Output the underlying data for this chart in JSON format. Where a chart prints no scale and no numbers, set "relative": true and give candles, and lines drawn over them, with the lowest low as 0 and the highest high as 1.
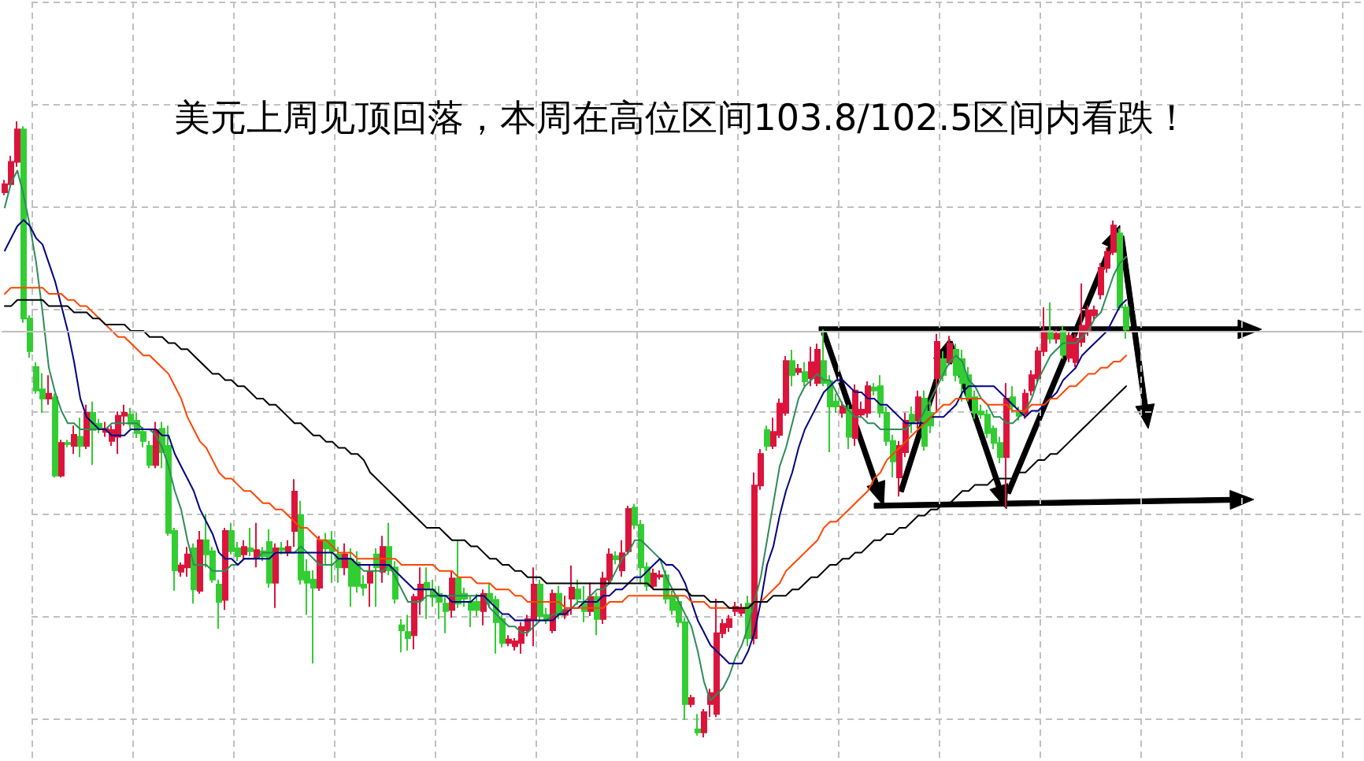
{
  "chart_data": {
    "type": "candlestick",
    "title": "美元上周见顶回落，本周在高位区间103.8/102.5区间内看跌！",
    "relative": true,
    "grid": true,
    "marker": "none",
    "categories": [
      null,
      null,
      null,
      null,
      null,
      null,
      null,
      null,
      null,
      null,
      null,
      null,
      null,
      null,
      null,
      null,
      null,
      null,
      null,
      null,
      null,
      null,
      null,
      null,
      null,
      null,
      null,
      null,
      null,
      null,
      null,
      null,
      null,
      null,
      null,
      null,
      null,
      null,
      null,
      null,
      null,
      null,
      null,
      null,
      null,
      null,
      null,
      null,
      null,
      null,
      null,
      null,
      null,
      null,
      null,
      null,
      null,
      null,
      null,
      null,
      null,
      null,
      null,
      null,
      null,
      null,
      null,
      null,
      null,
      null,
      null,
      null,
      null,
      null,
      null,
      null,
      null,
      null,
      null,
      null,
      null,
      null,
      null,
      null,
      null,
      null,
      null,
      null,
      null,
      null,
      null,
      null,
      null,
      null,
      null,
      null,
      null,
      null,
      null,
      null,
      null,
      null,
      null,
      null,
      null,
      null,
      null,
      null,
      null,
      null,
      null,
      null,
      null,
      null,
      null,
      null,
      null,
      null,
      null,
      null,
      null,
      null,
      null,
      null,
      null,
      null,
      null,
      null,
      null,
      null,
      null,
      null,
      null,
      null,
      null,
      null,
      null,
      null,
      null,
      null,
      null,
      null,
      null,
      null,
      null,
      null,
      null,
      null,
      null,
      null,
      null,
      null,
      null,
      null,
      null,
      null,
      null,
      null,
      null,
      null,
      null,
      null,
      null,
      null,
      null,
      null,
      null,
      null,
      null,
      null,
      null,
      null,
      null,
      null,
      null,
      null,
      null,
      null,
      null,
      null,
      null,
      null,
      null,
      null,
      null,
      null,
      null,
      null,
      null,
      null,
      null,
      null,
      null,
      null,
      null,
      null,
      null,
      null,
      null,
      null,
      null,
      null,
      null,
      null,
      null,
      null,
      null,
      null,
      null,
      null,
      null,
      null,
      null,
      null,
      null,
      null
    ],
    "ohlc": [
      [
        0.885,
        0.905,
        0.88,
        0.898
      ],
      [
        0.898,
        0.944,
        0.893,
        0.934
      ],
      [
        0.934,
        1.0,
        0.926,
        0.987
      ],
      [
        0.987,
        0.992,
        0.673,
        0.68
      ],
      [
        0.68,
        0.685,
        0.616,
        0.627
      ],
      [
        0.601,
        0.609,
        0.558,
        0.563
      ],
      [
        0.565,
        0.591,
        0.527,
        0.55
      ],
      [
        0.55,
        0.588,
        0.54,
        0.558
      ],
      [
        0.552,
        0.558,
        0.422,
        0.425
      ],
      [
        0.425,
        0.483,
        0.422,
        0.478
      ],
      [
        0.478,
        0.483,
        0.471,
        0.476
      ],
      [
        0.473,
        0.506,
        0.46,
        0.491
      ],
      [
        0.488,
        0.519,
        0.455,
        0.473
      ],
      [
        0.473,
        0.54,
        0.468,
        0.527
      ],
      [
        0.527,
        0.545,
        0.442,
        0.499
      ],
      [
        0.509,
        0.517,
        0.494,
        0.501
      ],
      [
        0.496,
        0.512,
        0.488,
        0.501
      ],
      [
        0.481,
        0.506,
        0.473,
        0.499
      ],
      [
        0.488,
        0.529,
        0.46,
        0.522
      ],
      [
        0.522,
        0.54,
        0.506,
        0.527
      ],
      [
        0.524,
        0.535,
        0.501,
        0.509
      ],
      [
        0.514,
        0.527,
        0.486,
        0.494
      ],
      [
        0.496,
        0.504,
        0.471,
        0.481
      ],
      [
        0.473,
        0.481,
        0.437,
        0.442
      ],
      [
        0.442,
        0.512,
        0.437,
        0.499
      ],
      [
        0.501,
        0.512,
        0.437,
        0.463
      ],
      [
        0.473,
        0.506,
        0.327,
        0.332
      ],
      [
        0.335,
        0.34,
        0.238,
        0.271
      ],
      [
        0.269,
        0.284,
        0.261,
        0.279
      ],
      [
        0.276,
        0.309,
        0.261,
        0.297
      ],
      [
        0.307,
        0.315,
        0.217,
        0.24
      ],
      [
        0.238,
        0.335,
        0.233,
        0.32
      ],
      [
        0.32,
        0.363,
        0.276,
        0.297
      ],
      [
        0.302,
        0.309,
        0.251,
        0.256
      ],
      [
        0.248,
        0.256,
        0.176,
        0.22
      ],
      [
        0.223,
        0.34,
        0.207,
        0.335
      ],
      [
        0.335,
        0.348,
        0.297,
        0.302
      ],
      [
        0.307,
        0.317,
        0.286,
        0.294
      ],
      [
        0.297,
        0.32,
        0.289,
        0.309
      ],
      [
        0.307,
        0.34,
        0.294,
        0.302
      ],
      [
        0.292,
        0.348,
        0.276,
        0.304
      ],
      [
        0.302,
        0.309,
        0.286,
        0.294
      ],
      [
        0.317,
        0.338,
        0.243,
        0.251
      ],
      [
        0.251,
        0.315,
        0.21,
        0.307
      ],
      [
        0.307,
        0.317,
        0.297,
        0.304
      ],
      [
        0.302,
        0.32,
        0.294,
        0.309
      ],
      [
        0.335,
        0.419,
        0.309,
        0.399
      ],
      [
        0.361,
        0.384,
        0.248,
        0.256
      ],
      [
        0.269,
        0.289,
        0.199,
        0.251
      ],
      [
        0.256,
        0.271,
        0.12,
        0.243
      ],
      [
        0.243,
        0.327,
        0.238,
        0.32
      ],
      [
        0.32,
        0.332,
        0.281,
        0.307
      ],
      [
        0.32,
        0.335,
        0.251,
        0.302
      ],
      [
        0.297,
        0.309,
        0.251,
        0.276
      ],
      [
        0.276,
        0.315,
        0.263,
        0.297
      ],
      [
        0.289,
        0.307,
        0.212,
        0.246
      ],
      [
        0.284,
        0.302,
        0.235,
        0.246
      ],
      [
        0.248,
        0.263,
        0.23,
        0.243
      ],
      [
        0.251,
        0.281,
        0.212,
        0.269
      ],
      [
        0.297,
        0.307,
        0.212,
        0.276
      ],
      [
        0.269,
        0.327,
        0.251,
        0.309
      ],
      [
        0.309,
        0.348,
        0.263,
        0.271
      ],
      [
        0.276,
        0.286,
        0.217,
        0.225
      ],
      [
        0.182,
        0.192,
        0.138,
        0.174
      ],
      [
        0.171,
        0.199,
        0.141,
        0.161
      ],
      [
        0.166,
        0.233,
        0.143,
        0.228
      ],
      [
        0.223,
        0.276,
        0.199,
        0.248
      ],
      [
        0.251,
        0.276,
        0.192,
        0.24
      ],
      [
        0.24,
        0.256,
        0.212,
        0.228
      ],
      [
        0.233,
        0.246,
        0.192,
        0.22
      ],
      [
        0.217,
        0.23,
        0.169,
        0.205
      ],
      [
        0.207,
        0.271,
        0.194,
        0.258
      ],
      [
        0.258,
        0.32,
        0.21,
        0.217
      ],
      [
        0.233,
        0.243,
        0.212,
        0.225
      ],
      [
        0.22,
        0.23,
        0.179,
        0.207
      ],
      [
        0.22,
        0.233,
        0.197,
        0.207
      ],
      [
        0.205,
        0.24,
        0.182,
        0.233
      ],
      [
        0.233,
        0.251,
        0.21,
        0.22
      ],
      [
        0.223,
        0.23,
        0.136,
        0.187
      ],
      [
        0.192,
        0.199,
        0.146,
        0.153
      ],
      [
        0.153,
        0.166,
        0.148,
        0.159
      ],
      [
        0.148,
        0.161,
        0.141,
        0.156
      ],
      [
        0.153,
        0.187,
        0.136,
        0.179
      ],
      [
        0.174,
        0.199,
        0.164,
        0.192
      ],
      [
        0.192,
        0.276,
        0.148,
        0.248
      ],
      [
        0.248,
        0.256,
        0.189,
        0.197
      ],
      [
        0.199,
        0.21,
        0.184,
        0.192
      ],
      [
        0.174,
        0.24,
        0.169,
        0.233
      ],
      [
        0.233,
        0.246,
        0.192,
        0.199
      ],
      [
        0.199,
        0.23,
        0.192,
        0.207
      ],
      [
        0.225,
        0.279,
        0.199,
        0.243
      ],
      [
        0.24,
        0.256,
        0.215,
        0.225
      ],
      [
        0.217,
        0.246,
        0.187,
        0.205
      ],
      [
        0.205,
        0.251,
        0.197,
        0.228
      ],
      [
        0.228,
        0.235,
        0.166,
        0.192
      ],
      [
        0.192,
        0.269,
        0.184,
        0.258
      ],
      [
        0.256,
        0.307,
        0.248,
        0.297
      ],
      [
        0.294,
        0.302,
        0.281,
        0.289
      ],
      [
        0.271,
        0.32,
        0.261,
        0.299
      ],
      [
        0.302,
        0.376,
        0.297,
        0.371
      ],
      [
        0.373,
        0.379,
        0.338,
        0.345
      ],
      [
        0.345,
        0.353,
        0.251,
        0.276
      ],
      [
        0.276,
        0.284,
        0.238,
        0.246
      ],
      [
        0.246,
        0.274,
        0.24,
        0.266
      ],
      [
        0.261,
        0.271,
        0.256,
        0.263
      ],
      [
        0.263,
        0.271,
        0.217,
        0.225
      ],
      [
        0.23,
        0.238,
        0.199,
        0.207
      ],
      [
        0.22,
        0.23,
        0.179,
        0.187
      ],
      [
        0.187,
        0.194,
        0.028,
        0.054
      ],
      [
        0.054,
        0.069,
        0.049,
        0.064
      ],
      [
        0.013,
        0.038,
        0.003,
        0.008
      ],
      [
        0.008,
        0.046,
        0,
        0.041
      ],
      [
        0.054,
        0.079,
        0.033,
        0.072
      ],
      [
        0.038,
        0.225,
        0.033,
        0.169
      ],
      [
        0.169,
        0.192,
        0.161,
        0.184
      ],
      [
        0.179,
        0.199,
        0.171,
        0.192
      ],
      [
        0.205,
        0.22,
        0.197,
        0.212
      ],
      [
        0.202,
        0.217,
        0.197,
        0.21
      ],
      [
        0.217,
        0.23,
        0.148,
        0.161
      ],
      [
        0.161,
        0.43,
        0.151,
        0.409
      ],
      [
        0.409,
        0.468,
        0.402,
        0.46
      ],
      [
        0.499,
        0.506,
        0.465,
        0.473
      ],
      [
        0.473,
        0.519,
        0.468,
        0.496
      ],
      [
        0.491,
        0.55,
        0.486,
        0.542
      ],
      [
        0.527,
        0.619,
        0.522,
        0.611
      ],
      [
        0.611,
        0.629,
        0.57,
        0.588
      ],
      [
        0.593,
        0.606,
        0.588,
        0.598
      ],
      [
        0.593,
        0.609,
        0.57,
        0.578
      ],
      [
        0.583,
        0.634,
        0.57,
        0.609
      ],
      [
        0.575,
        0.639,
        0.57,
        0.629
      ],
      [
        0.611,
        0.662,
        0.57,
        0.575
      ],
      [
        0.578,
        0.588,
        0.463,
        0.537
      ],
      [
        0.545,
        0.558,
        0.527,
        0.537
      ],
      [
        0.527,
        0.545,
        0.519,
        0.537
      ],
      [
        0.532,
        0.54,
        0.468,
        0.488
      ],
      [
        0.486,
        0.573,
        0.473,
        0.563
      ],
      [
        0.524,
        0.545,
        0.519,
        0.532
      ],
      [
        0.527,
        0.578,
        0.519,
        0.57
      ],
      [
        0.568,
        0.575,
        0.555,
        0.563
      ],
      [
        0.57,
        0.588,
        0.519,
        0.527
      ],
      [
        0.527,
        0.537,
        0.473,
        0.481
      ],
      [
        0.481,
        0.491,
        0.422,
        0.448
      ],
      [
        0.422,
        0.481,
        0.391,
        0.473
      ],
      [
        0.463,
        0.527,
        0.455,
        0.514
      ],
      [
        0.524,
        0.537,
        0.494,
        0.512
      ],
      [
        0.514,
        0.563,
        0.501,
        0.552
      ],
      [
        0.55,
        0.563,
        0.465,
        0.473
      ],
      [
        0.527,
        0.545,
        0.494,
        0.506
      ],
      [
        0.583,
        0.655,
        0.527,
        0.642
      ],
      [
        0.614,
        0.627,
        0.578,
        0.588
      ],
      [
        0.609,
        0.652,
        0.604,
        0.639
      ],
      [
        0.629,
        0.639,
        0.578,
        0.588
      ],
      [
        0.614,
        0.629,
        0.545,
        0.575
      ],
      [
        0.588,
        0.601,
        0.545,
        0.552
      ],
      [
        0.552,
        0.563,
        0.517,
        0.527
      ],
      [
        0.529,
        0.54,
        0.517,
        0.524
      ],
      [
        0.524,
        0.532,
        0.486,
        0.494
      ],
      [
        0.501,
        0.506,
        0.468,
        0.478
      ],
      [
        0.478,
        0.488,
        0.445,
        0.455
      ],
      [
        0.455,
        0.575,
        0.373,
        0.55
      ],
      [
        0.552,
        0.57,
        0.527,
        0.537
      ],
      [
        0.527,
        0.537,
        0.514,
        0.522
      ],
      [
        0.524,
        0.565,
        0.517,
        0.558
      ],
      [
        0.563,
        0.596,
        0.555,
        0.588
      ],
      [
        0.583,
        0.634,
        0.575,
        0.627
      ],
      [
        0.627,
        0.698,
        0.619,
        0.66
      ],
      [
        0.66,
        0.706,
        0.639,
        0.647
      ],
      [
        0.647,
        0.662,
        0.639,
        0.655
      ],
      [
        0.66,
        0.668,
        0.614,
        0.621
      ],
      [
        0.616,
        0.66,
        0.609,
        0.652
      ],
      [
        0.609,
        0.655,
        0.601,
        0.647
      ],
      [
        0.642,
        0.737,
        0.634,
        0.668
      ],
      [
        0.66,
        0.701,
        0.652,
        0.693
      ],
      [
        0.685,
        0.701,
        0.678,
        0.693
      ],
      [
        0.719,
        0.77,
        0.711,
        0.762
      ],
      [
        0.762,
        0.795,
        0.754,
        0.788
      ],
      [
        0.788,
        0.839,
        0.783,
        0.831
      ],
      [
        0.818,
        0.826,
        0.693,
        0.698
      ],
      [
        0.698,
        0.703,
        0.647,
        0.662
      ],
      null,
      null,
      null,
      null,
      null,
      null,
      null,
      null,
      null,
      null,
      null,
      null,
      null,
      null,
      null,
      null,
      null,
      null,
      null,
      null,
      null,
      null,
      null,
      null,
      null,
      null,
      null,
      null,
      null,
      null,
      null,
      null,
      null,
      null,
      null,
      null,
      null
    ],
    "colors": [
      "#dc143c",
      "#dc143c",
      "#dc143c",
      "#32cd32",
      "#32cd32",
      "#32cd32",
      "#32cd32",
      "#dc143c",
      "#32cd32",
      "#dc143c",
      "#32cd32",
      "#dc143c",
      "#32cd32",
      "#dc143c",
      "#32cd32",
      "#32cd32",
      "#dc143c",
      "#dc143c",
      "#dc143c",
      "#dc143c",
      "#32cd32",
      "#32cd32",
      "#32cd32",
      "#32cd32",
      "#dc143c",
      "#32cd32",
      "#32cd32",
      "#32cd32",
      "#dc143c",
      "#dc143c",
      "#32cd32",
      "#dc143c",
      "#32cd32",
      "#32cd32",
      "#32cd32",
      "#dc143c",
      "#32cd32",
      "#32cd32",
      "#dc143c",
      "#32cd32",
      "#dc143c",
      "#32cd32",
      "#32cd32",
      "#dc143c",
      "#32cd32",
      "#dc143c",
      "#dc143c",
      "#32cd32",
      "#32cd32",
      "#32cd32",
      "#dc143c",
      "#32cd32",
      "#32cd32",
      "#32cd32",
      "#dc143c",
      "#32cd32",
      "#32cd32",
      "#32cd32",
      "#dc143c",
      "#32cd32",
      "#dc143c",
      "#32cd32",
      "#32cd32",
      "#32cd32",
      "#32cd32",
      "#dc143c",
      "#dc143c",
      "#32cd32",
      "#32cd32",
      "#32cd32",
      "#32cd32",
      "#dc143c",
      "#32cd32",
      "#32cd32",
      "#32cd32",
      "#32cd32",
      "#dc143c",
      "#32cd32",
      "#32cd32",
      "#32cd32",
      "#dc143c",
      "#dc143c",
      "#dc143c",
      "#dc143c",
      "#dc143c",
      "#32cd32",
      "#32cd32",
      "#dc143c",
      "#32cd32",
      "#dc143c",
      "#dc143c",
      "#32cd32",
      "#32cd32",
      "#dc143c",
      "#32cd32",
      "#dc143c",
      "#dc143c",
      "#32cd32",
      "#dc143c",
      "#dc143c",
      "#32cd32",
      "#32cd32",
      "#32cd32",
      "#dc143c",
      "#dc143c",
      "#32cd32",
      "#32cd32",
      "#32cd32",
      "#32cd32",
      "#dc143c",
      "#32cd32",
      "#dc143c",
      "#dc143c",
      "#dc143c",
      "#dc143c",
      "#dc143c",
      "#dc143c",
      "#dc143c",
      "#32cd32",
      "#dc143c",
      "#dc143c",
      "#32cd32",
      "#dc143c",
      "#dc143c",
      "#dc143c",
      "#32cd32",
      "#dc143c",
      "#32cd32",
      "#dc143c",
      "#dc143c",
      "#32cd32",
      "#32cd32",
      "#32cd32",
      "#dc143c",
      "#32cd32",
      "#dc143c",
      "#dc143c",
      "#dc143c",
      "#32cd32",
      "#32cd32",
      "#32cd32",
      "#32cd32",
      "#dc143c",
      "#dc143c",
      "#32cd32",
      "#dc143c",
      "#32cd32",
      "#32cd32",
      "#dc143c",
      "#32cd32",
      "#dc143c",
      "#32cd32",
      "#32cd32",
      "#32cd32",
      "#32cd32",
      "#32cd32",
      "#32cd32",
      "#32cd32",
      "#32cd32",
      "#dc143c",
      "#32cd32",
      "#32cd32",
      "#dc143c",
      "#dc143c",
      "#dc143c",
      "#dc143c",
      "#32cd32",
      "#dc143c",
      "#32cd32",
      "#dc143c",
      "#dc143c",
      "#dc143c",
      "#dc143c",
      "#dc143c",
      "#dc143c",
      "#dc143c",
      "#dc143c",
      "#32cd32",
      "#32cd32",
      null,
      null,
      null,
      null,
      null,
      null,
      null,
      null,
      null,
      null,
      null,
      null,
      null,
      null,
      null,
      null,
      null,
      null,
      null,
      null,
      null,
      null,
      null,
      null,
      null,
      null,
      null,
      null,
      null,
      null,
      null,
      null,
      null,
      null,
      null,
      null,
      null
    ],
    "series": [
      {
        "type": "line",
        "color": "#2e8b57",
        "values": [
          0.86,
          0.9,
          0.92,
          0.88,
          0.83,
          0.77,
          0.69,
          0.6,
          0.56,
          0.53,
          0.51,
          0.51,
          0.5,
          0.5,
          0.5,
          0.5,
          0.5,
          0.51,
          0.51,
          0.51,
          0.51,
          0.51,
          0.5,
          0.5,
          0.49,
          0.47,
          0.44,
          0.4,
          0.37,
          0.32,
          0.28,
          0.28,
          0.28,
          0.27,
          0.27,
          0.27,
          0.28,
          0.28,
          0.29,
          0.29,
          0.29,
          0.3,
          0.3,
          0.3,
          0.3,
          0.3,
          0.3,
          0.31,
          0.3,
          0.29,
          0.28,
          0.28,
          0.28,
          0.29,
          0.29,
          0.29,
          0.28,
          0.27,
          0.27,
          0.27,
          0.27,
          0.28,
          0.26,
          0.24,
          0.22,
          0.22,
          0.22,
          0.23,
          0.23,
          0.23,
          0.23,
          0.23,
          0.23,
          0.23,
          0.23,
          0.23,
          0.23,
          0.21,
          0.2,
          0.19,
          0.18,
          0.18,
          0.17,
          0.17,
          0.18,
          0.19,
          0.19,
          0.2,
          0.2,
          0.21,
          0.21,
          0.22,
          0.22,
          0.23,
          0.24,
          0.24,
          0.25,
          0.27,
          0.29,
          0.3,
          0.32,
          0.32,
          0.31,
          0.3,
          0.29,
          0.26,
          0.24,
          0.22,
          0.2,
          0.18,
          0.14,
          0.09,
          0.06,
          0.07,
          0.08,
          0.1,
          0.13,
          0.15,
          0.18,
          0.22,
          0.26,
          0.32,
          0.38,
          0.44,
          0.47,
          0.51,
          0.55,
          0.57,
          0.58,
          0.59,
          0.58,
          0.58,
          0.56,
          0.54,
          0.53,
          0.52,
          0.52,
          0.51,
          0.51,
          0.5,
          0.5,
          0.5,
          0.5,
          0.5,
          0.51,
          0.51,
          0.53,
          0.55,
          0.57,
          0.59,
          0.61,
          0.62,
          0.61,
          0.58,
          0.57,
          0.55,
          0.54,
          0.52,
          0.52,
          0.51,
          0.51,
          0.52,
          0.53,
          0.55,
          0.58,
          0.6,
          0.62,
          0.63,
          0.64,
          0.64,
          0.64,
          0.65,
          0.66,
          0.68,
          0.69,
          0.72,
          0.75,
          0.77,
          0.78,
          null,
          null,
          null,
          null,
          null,
          null,
          null,
          null,
          null,
          null,
          null,
          null,
          null,
          null,
          null,
          null,
          null,
          null,
          null,
          null,
          null,
          null,
          null,
          null,
          null,
          null,
          null,
          null,
          null,
          null,
          null,
          null,
          null,
          null,
          null,
          null,
          null
        ]
      },
      {
        "type": "line",
        "color": "#000080",
        "values": [
          0.79,
          0.81,
          0.83,
          0.84,
          0.83,
          0.81,
          0.8,
          0.77,
          0.74,
          0.7,
          0.66,
          0.61,
          0.55,
          0.52,
          0.51,
          0.5,
          0.5,
          0.49,
          0.49,
          0.49,
          0.5,
          0.5,
          0.5,
          0.5,
          0.5,
          0.49,
          0.49,
          0.46,
          0.44,
          0.42,
          0.4,
          0.37,
          0.35,
          0.33,
          0.3,
          0.29,
          0.29,
          0.28,
          0.29,
          0.29,
          0.29,
          0.29,
          0.29,
          0.3,
          0.3,
          0.3,
          0.3,
          0.3,
          0.3,
          0.3,
          0.3,
          0.3,
          0.3,
          0.29,
          0.29,
          0.29,
          0.28,
          0.28,
          0.28,
          0.28,
          0.28,
          0.28,
          0.27,
          0.26,
          0.25,
          0.24,
          0.24,
          0.24,
          0.24,
          0.23,
          0.23,
          0.22,
          0.22,
          0.22,
          0.22,
          0.23,
          0.23,
          0.22,
          0.21,
          0.2,
          0.2,
          0.19,
          0.19,
          0.19,
          0.19,
          0.19,
          0.19,
          0.19,
          0.2,
          0.2,
          0.21,
          0.21,
          0.22,
          0.22,
          0.22,
          0.23,
          0.23,
          0.24,
          0.24,
          0.25,
          0.26,
          0.26,
          0.27,
          0.28,
          0.29,
          0.28,
          0.28,
          0.27,
          0.25,
          0.22,
          0.19,
          0.17,
          0.15,
          0.14,
          0.13,
          0.12,
          0.12,
          0.12,
          0.14,
          0.17,
          0.22,
          0.28,
          0.31,
          0.36,
          0.4,
          0.43,
          0.47,
          0.5,
          0.52,
          0.54,
          0.56,
          0.57,
          0.58,
          0.58,
          0.57,
          0.56,
          0.56,
          0.55,
          0.55,
          0.54,
          0.54,
          0.53,
          0.52,
          0.51,
          0.51,
          0.51,
          0.51,
          0.52,
          0.52,
          0.52,
          0.53,
          0.54,
          0.56,
          0.57,
          0.57,
          0.57,
          0.57,
          0.57,
          0.56,
          0.55,
          0.54,
          0.53,
          0.52,
          0.53,
          0.53,
          0.54,
          0.55,
          0.56,
          0.58,
          0.59,
          0.6,
          0.62,
          0.63,
          0.64,
          0.65,
          0.66,
          0.68,
          0.7,
          0.71,
          null,
          null,
          null,
          null,
          null,
          null,
          null,
          null,
          null,
          null,
          null,
          null,
          null,
          null,
          null,
          null,
          null,
          null,
          null,
          null,
          null,
          null,
          null,
          null,
          null,
          null,
          null,
          null,
          null,
          null,
          null,
          null,
          null,
          null,
          null,
          null,
          null
        ]
      },
      {
        "type": "line",
        "color": "#ff4500",
        "values": [
          0.72,
          0.73,
          0.73,
          0.73,
          0.73,
          0.73,
          0.73,
          0.72,
          0.72,
          0.72,
          0.71,
          0.71,
          0.7,
          0.7,
          0.69,
          0.68,
          0.67,
          0.66,
          0.65,
          0.65,
          0.64,
          0.63,
          0.62,
          0.62,
          0.61,
          0.6,
          0.59,
          0.57,
          0.55,
          0.52,
          0.5,
          0.48,
          0.47,
          0.45,
          0.43,
          0.42,
          0.42,
          0.41,
          0.4,
          0.4,
          0.39,
          0.38,
          0.38,
          0.37,
          0.37,
          0.36,
          0.35,
          0.34,
          0.34,
          0.33,
          0.32,
          0.32,
          0.31,
          0.3,
          0.3,
          0.3,
          0.29,
          0.29,
          0.29,
          0.29,
          0.29,
          0.29,
          0.29,
          0.28,
          0.28,
          0.28,
          0.28,
          0.28,
          0.28,
          0.27,
          0.27,
          0.27,
          0.26,
          0.26,
          0.26,
          0.25,
          0.25,
          0.25,
          0.24,
          0.24,
          0.24,
          0.23,
          0.23,
          0.22,
          0.22,
          0.22,
          0.22,
          0.22,
          0.22,
          0.21,
          0.21,
          0.21,
          0.21,
          0.21,
          0.21,
          0.21,
          0.22,
          0.22,
          0.22,
          0.23,
          0.23,
          0.23,
          0.23,
          0.23,
          0.23,
          0.23,
          0.23,
          0.23,
          0.23,
          0.22,
          0.22,
          0.22,
          0.21,
          0.21,
          0.21,
          0.21,
          0.21,
          0.21,
          0.21,
          0.22,
          0.22,
          0.23,
          0.24,
          0.25,
          0.27,
          0.28,
          0.29,
          0.3,
          0.31,
          0.32,
          0.34,
          0.35,
          0.35,
          0.36,
          0.37,
          0.38,
          0.39,
          0.4,
          0.42,
          0.43,
          0.45,
          0.46,
          0.47,
          0.48,
          0.49,
          0.5,
          0.51,
          0.52,
          0.53,
          0.54,
          0.54,
          0.55,
          0.55,
          0.55,
          0.55,
          0.55,
          0.54,
          0.54,
          0.54,
          0.54,
          0.53,
          0.53,
          0.53,
          0.54,
          0.54,
          0.54,
          0.55,
          0.55,
          0.56,
          0.57,
          0.57,
          0.58,
          0.59,
          0.59,
          0.6,
          0.6,
          0.61,
          0.61,
          0.62,
          null,
          null,
          null,
          null,
          null,
          null,
          null,
          null,
          null,
          null,
          null,
          null,
          null,
          null,
          null,
          null,
          null,
          null,
          null,
          null,
          null,
          null,
          null,
          null,
          null,
          null,
          null,
          null,
          null,
          null,
          null,
          null,
          null,
          null,
          null,
          null,
          null
        ]
      },
      {
        "type": "line",
        "color": "#000000",
        "values": [
          0.7,
          0.7,
          0.71,
          0.71,
          0.71,
          0.71,
          0.71,
          0.7,
          0.7,
          0.7,
          0.7,
          0.69,
          0.69,
          0.69,
          0.68,
          0.68,
          0.67,
          0.67,
          0.67,
          0.67,
          0.66,
          0.66,
          0.66,
          0.65,
          0.65,
          0.65,
          0.64,
          0.64,
          0.63,
          0.63,
          0.62,
          0.61,
          0.6,
          0.59,
          0.59,
          0.58,
          0.58,
          0.57,
          0.57,
          0.56,
          0.55,
          0.55,
          0.54,
          0.54,
          0.53,
          0.52,
          0.51,
          0.51,
          0.5,
          0.49,
          0.49,
          0.48,
          0.48,
          0.47,
          0.47,
          0.46,
          0.46,
          0.45,
          0.43,
          0.42,
          0.41,
          0.4,
          0.39,
          0.38,
          0.37,
          0.36,
          0.35,
          0.34,
          0.34,
          0.34,
          0.33,
          0.32,
          0.32,
          0.32,
          0.31,
          0.31,
          0.3,
          0.29,
          0.29,
          0.28,
          0.28,
          0.27,
          0.27,
          0.26,
          0.26,
          0.26,
          0.25,
          0.25,
          0.25,
          0.25,
          0.25,
          0.25,
          0.25,
          0.25,
          0.25,
          0.25,
          0.25,
          0.25,
          0.25,
          0.25,
          0.25,
          0.25,
          0.25,
          0.24,
          0.24,
          0.24,
          0.24,
          0.24,
          0.24,
          0.23,
          0.23,
          0.23,
          0.22,
          0.22,
          0.22,
          0.21,
          0.21,
          0.21,
          0.21,
          0.22,
          0.22,
          0.22,
          0.23,
          0.23,
          0.23,
          0.24,
          0.24,
          0.25,
          0.26,
          0.26,
          0.27,
          0.28,
          0.28,
          0.29,
          0.29,
          0.3,
          0.3,
          0.31,
          0.32,
          0.32,
          0.33,
          0.33,
          0.34,
          0.34,
          0.35,
          0.36,
          0.36,
          0.37,
          0.37,
          0.38,
          0.38,
          0.39,
          0.4,
          0.4,
          0.41,
          0.41,
          0.41,
          0.42,
          0.42,
          0.42,
          0.42,
          0.43,
          0.43,
          0.44,
          0.45,
          0.45,
          0.46,
          0.46,
          0.47,
          0.48,
          0.49,
          0.5,
          0.51,
          0.52,
          0.53,
          0.54,
          0.55,
          0.56,
          0.57,
          null,
          null,
          null,
          null,
          null,
          null,
          null,
          null,
          null,
          null,
          null,
          null,
          null,
          null,
          null,
          null,
          null,
          null,
          null,
          null,
          null,
          null,
          null,
          null,
          null,
          null,
          null,
          null,
          null,
          null,
          null,
          null,
          null,
          null,
          null,
          null,
          null
        ]
      }
    ],
    "ref_lines": [
      {
        "axis": "y",
        "value": 0.662,
        "color": "#c0c0c0"
      }
    ]
  }
}
